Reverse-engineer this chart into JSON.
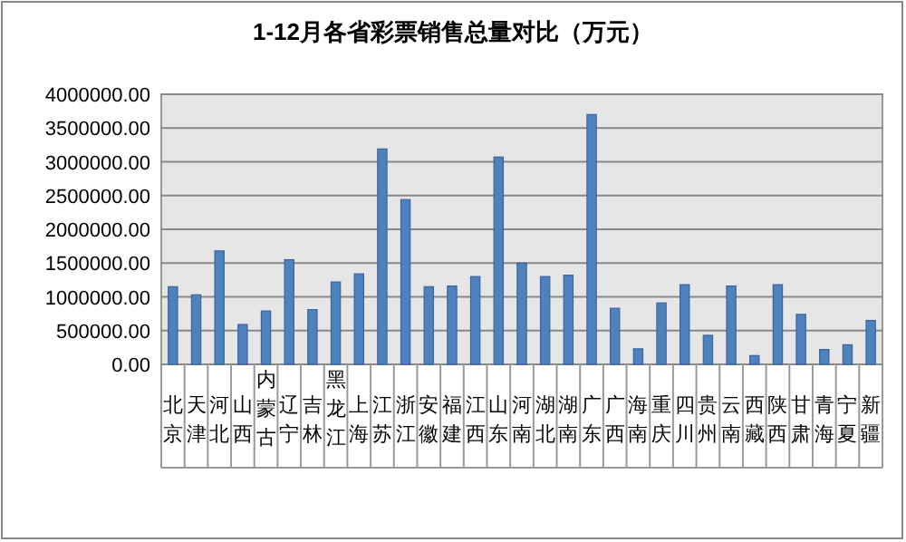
{
  "chart_data": {
    "type": "bar",
    "title": "1-12月各省彩票销售总量对比（万元）",
    "categories": [
      "北京",
      "天津",
      "河北",
      "山西",
      "内蒙古",
      "辽宁",
      "吉林",
      "黑龙江",
      "上海",
      "江苏",
      "浙江",
      "安徽",
      "福建",
      "江西",
      "山东",
      "河南",
      "湖北",
      "湖南",
      "广东",
      "广西",
      "海南",
      "重庆",
      "四川",
      "贵州",
      "云南",
      "西藏",
      "陕西",
      "甘肃",
      "青海",
      "宁夏",
      "新疆"
    ],
    "values": [
      1150000,
      1030000,
      1680000,
      590000,
      790000,
      1550000,
      810000,
      1220000,
      1340000,
      3190000,
      2440000,
      1150000,
      1160000,
      1300000,
      3070000,
      1500000,
      1300000,
      1320000,
      3700000,
      830000,
      230000,
      910000,
      1180000,
      430000,
      1160000,
      130000,
      1180000,
      740000,
      220000,
      290000,
      650000
    ],
    "color": "#4f81bd",
    "ylim": [
      0,
      4000000
    ],
    "yticks": [
      {
        "value": 0,
        "label": "0.00"
      },
      {
        "value": 500000,
        "label": "500000.00"
      },
      {
        "value": 1000000,
        "label": "1000000.00"
      },
      {
        "value": 1500000,
        "label": "1500000.00"
      },
      {
        "value": 2000000,
        "label": "2000000.00"
      },
      {
        "value": 2500000,
        "label": "2500000.00"
      },
      {
        "value": 3000000,
        "label": "3000000.00"
      },
      {
        "value": 3500000,
        "label": "3500000.00"
      },
      {
        "value": 4000000,
        "label": "4000000.00"
      }
    ],
    "grid": "y"
  }
}
